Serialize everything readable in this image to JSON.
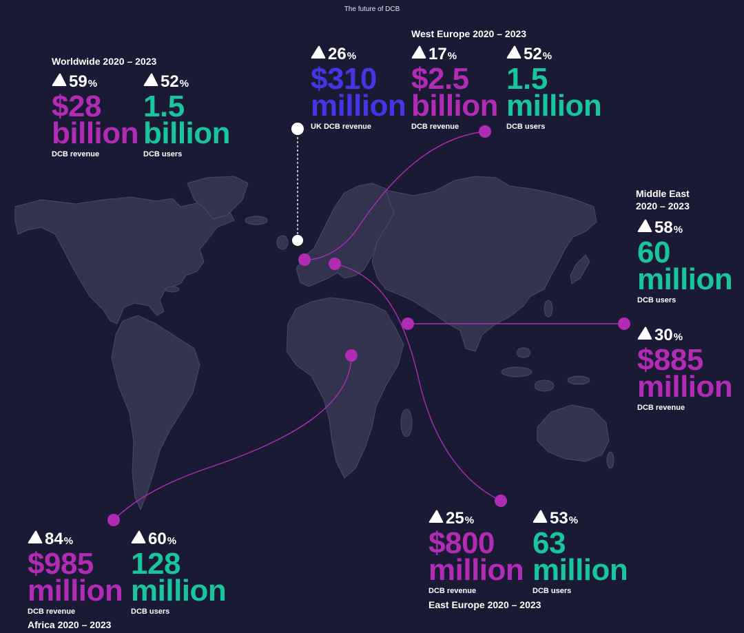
{
  "page_title": "The future of DCB",
  "colors": {
    "background": "#1b1a35",
    "land": "#34334f",
    "line": "#b12bb5",
    "revenue": "#b12bb5",
    "users": "#18c59c",
    "uk": "#4236e5"
  },
  "worldwide": {
    "heading": "Worldwide 2020 – 2023",
    "revenue": {
      "pct": "59",
      "value": "$28",
      "unit": "billion",
      "caption": "DCB revenue"
    },
    "users": {
      "pct": "52",
      "value": "1.5",
      "unit": "billion",
      "caption": "DCB users"
    }
  },
  "uk": {
    "revenue": {
      "pct": "26",
      "value": "$310",
      "unit": "million",
      "caption": "UK DCB revenue"
    }
  },
  "west_europe": {
    "heading": "West Europe 2020 – 2023",
    "revenue": {
      "pct": "17",
      "value": "$2.5",
      "unit": "billion",
      "caption": "DCB revenue"
    },
    "users": {
      "pct": "52",
      "value": "1.5",
      "unit": "million",
      "caption": "DCB users"
    }
  },
  "middle_east": {
    "heading_line1": "Middle East",
    "heading_line2": "2020 – 2023",
    "users": {
      "pct": "58",
      "value": "60",
      "unit": "million",
      "caption": "DCB users"
    },
    "revenue": {
      "pct": "30",
      "value": "$885",
      "unit": "million",
      "caption": "DCB revenue"
    }
  },
  "east_europe": {
    "heading": "East Europe 2020 – 2023",
    "revenue": {
      "pct": "25",
      "value": "$800",
      "unit": "million",
      "caption": "DCB revenue"
    },
    "users": {
      "pct": "53",
      "value": "63",
      "unit": "million",
      "caption": "DCB users"
    }
  },
  "africa": {
    "heading": "Africa 2020 – 2023",
    "revenue": {
      "pct": "84",
      "value": "$985",
      "unit": "million",
      "caption": "DCB revenue"
    },
    "users": {
      "pct": "60",
      "value": "128",
      "unit": "million",
      "caption": "DCB users"
    }
  },
  "percent_sign": "%"
}
